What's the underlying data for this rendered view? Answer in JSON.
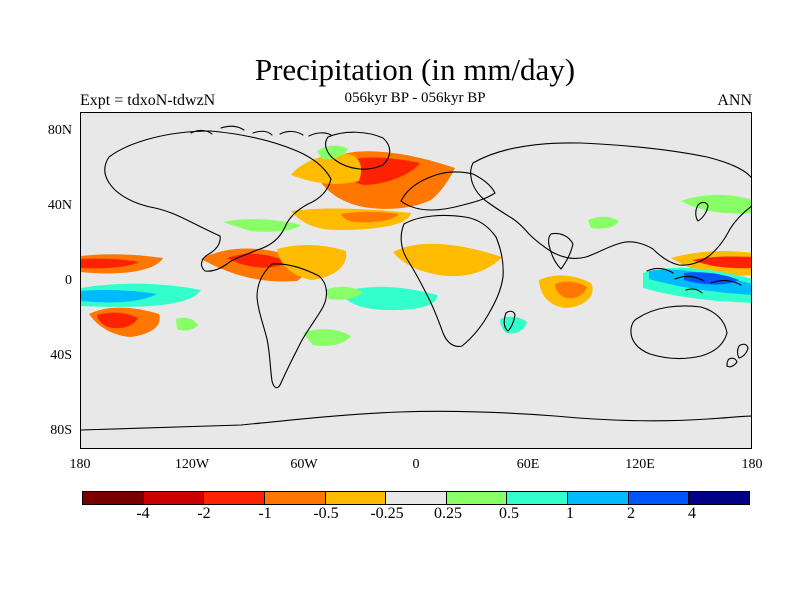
{
  "title": "Precipitation (in mm/day)",
  "subtitle": "056kyr BP - 056kyr BP",
  "left_label": "Expt = tdxoN-tdwzN",
  "right_label": "ANN",
  "axes": {
    "y_ticks": [
      "80N",
      "40N",
      "0",
      "40S",
      "80S"
    ],
    "x_ticks": [
      "180",
      "120W",
      "60W",
      "0",
      "60E",
      "120E",
      "180"
    ]
  },
  "colorbar": {
    "colors": [
      "#7a0000",
      "#cc0000",
      "#ff2200",
      "#ff7700",
      "#ffbb00",
      "#e8e8e8",
      "#88ff66",
      "#33ffcc",
      "#00bbff",
      "#0055ff",
      "#000088"
    ],
    "labels": [
      "-4",
      "-2",
      "-1",
      "-0.5",
      "-0.25",
      "0.25",
      "0.5",
      "1",
      "2",
      "4"
    ]
  }
}
